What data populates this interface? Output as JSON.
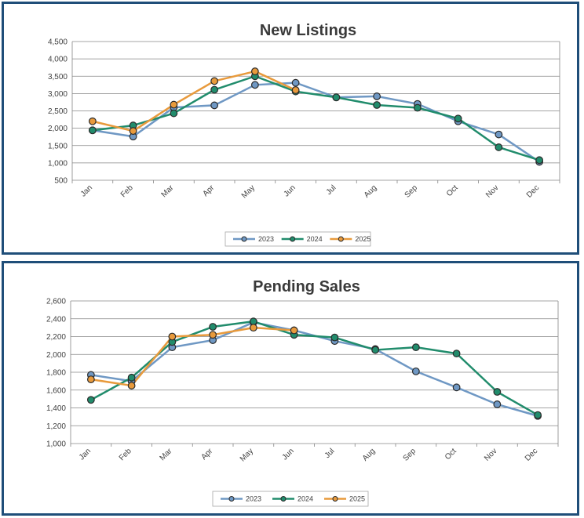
{
  "chart_data": [
    {
      "type": "line",
      "title": "New Listings",
      "xlabel": "",
      "ylabel": "",
      "categories": [
        "Jan",
        "Feb",
        "Mar",
        "Apr",
        "May",
        "Jun",
        "Jul",
        "Aug",
        "Sep",
        "Oct",
        "Nov",
        "Dec"
      ],
      "ylim": [
        500,
        4500
      ],
      "yticks": [
        500,
        1000,
        1500,
        2000,
        2500,
        3000,
        3500,
        4000,
        4500
      ],
      "ytick_labels": [
        "500",
        "1,000",
        "1,500",
        "2,000",
        "2,500",
        "3,000",
        "3,500",
        "4,000",
        "4,500"
      ],
      "grid": true,
      "legend": "bottom",
      "series": [
        {
          "name": "2023",
          "color": "#6f98c4",
          "values": [
            1940,
            1760,
            2600,
            2660,
            3250,
            3310,
            2890,
            2920,
            2700,
            2200,
            1820,
            1030
          ]
        },
        {
          "name": "2024",
          "color": "#218c6c",
          "values": [
            1940,
            2080,
            2430,
            3110,
            3500,
            3060,
            2890,
            2670,
            2590,
            2280,
            1450,
            1080
          ]
        },
        {
          "name": "2025",
          "color": "#e89a3c",
          "values": [
            2200,
            1920,
            2680,
            3360,
            3640,
            3100,
            null,
            null,
            null,
            null,
            null,
            null
          ]
        }
      ]
    },
    {
      "type": "line",
      "title": "Pending Sales",
      "xlabel": "",
      "ylabel": "",
      "categories": [
        "Jan",
        "Feb",
        "Mar",
        "Apr",
        "May",
        "Jun",
        "Jul",
        "Aug",
        "Sep",
        "Oct",
        "Nov",
        "Dec"
      ],
      "ylim": [
        1000,
        2600
      ],
      "yticks": [
        1000,
        1200,
        1400,
        1600,
        1800,
        2000,
        2200,
        2400,
        2600
      ],
      "ytick_labels": [
        "1,000",
        "1,200",
        "1,400",
        "1,600",
        "1,800",
        "2,000",
        "2,200",
        "2,400",
        "2,600"
      ],
      "grid": true,
      "legend": "bottom",
      "series": [
        {
          "name": "2023",
          "color": "#6f98c4",
          "values": [
            1770,
            1700,
            2080,
            2160,
            2360,
            2270,
            2150,
            2060,
            1810,
            1630,
            1440,
            1310
          ]
        },
        {
          "name": "2024",
          "color": "#218c6c",
          "values": [
            1490,
            1740,
            2140,
            2310,
            2370,
            2220,
            2190,
            2050,
            2080,
            2010,
            1580,
            1320
          ]
        },
        {
          "name": "2025",
          "color": "#e89a3c",
          "values": [
            1720,
            1650,
            2200,
            2220,
            2300,
            2270,
            null,
            null,
            null,
            null,
            null,
            null
          ]
        }
      ]
    }
  ]
}
